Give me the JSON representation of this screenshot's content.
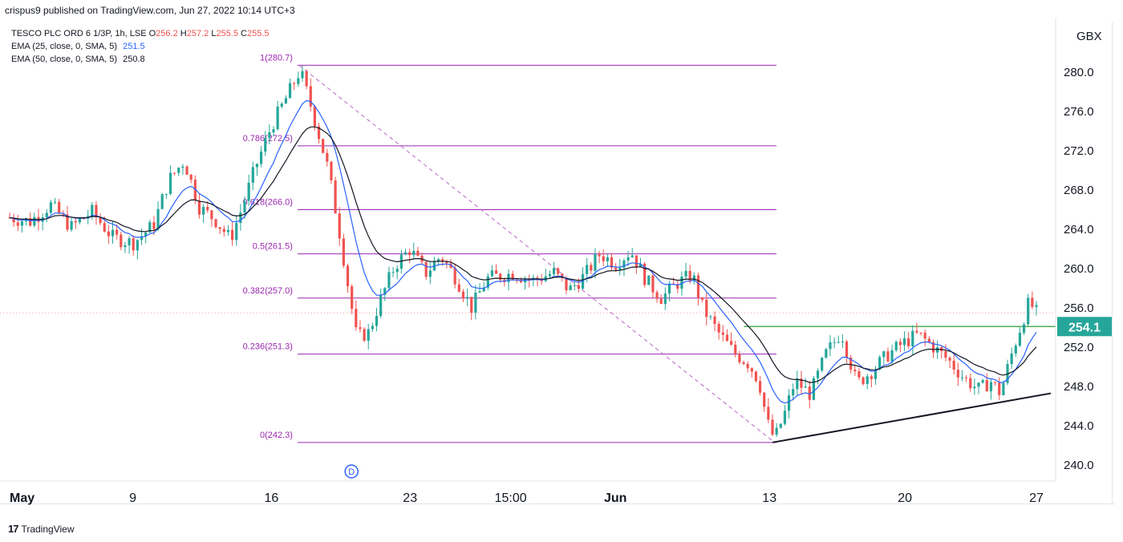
{
  "header": {
    "published": "crispus9 published on TradingView.com, Jun 27, 2022 10:14 UTC+3"
  },
  "legend": {
    "symbol": "TESCO PLC ORD 6 1/3P, 1h, LSE",
    "ohlc": [
      {
        "k": "O",
        "v": "256.2"
      },
      {
        "k": "H",
        "v": "257.2"
      },
      {
        "k": "L",
        "v": "255.5"
      },
      {
        "k": "C",
        "v": "255.5"
      }
    ],
    "ema25": {
      "label": "EMA (25, close, 0, SMA, 5)",
      "value": "251.5",
      "color": "#2962ff"
    },
    "ema50": {
      "label": "EMA (50, close, 0, SMA, 5)",
      "value": "250.8",
      "color": "#131722"
    }
  },
  "footer": {
    "logo": "17",
    "brand": "TradingView"
  },
  "chart_data": {
    "type": "candlestick",
    "currency": "GBX",
    "ylim": [
      238.5,
      283.5
    ],
    "y_ticks": [
      240.0,
      244.0,
      248.0,
      252.0,
      256.0,
      260.0,
      264.0,
      268.0,
      272.0,
      276.0,
      280.0
    ],
    "x_labels": [
      {
        "label": "May",
        "bold": true,
        "t": 0.0
      },
      {
        "label": "9",
        "bold": false,
        "t": 0.12
      },
      {
        "label": "16",
        "bold": false,
        "t": 0.255
      },
      {
        "label": "23",
        "bold": false,
        "t": 0.39
      },
      {
        "label": "15:00",
        "bold": false,
        "t": 0.488
      },
      {
        "label": "Jun",
        "bold": true,
        "t": 0.59
      },
      {
        "label": "13",
        "bold": false,
        "t": 0.74
      },
      {
        "label": "20",
        "bold": false,
        "t": 0.872
      },
      {
        "label": "27",
        "bold": false,
        "t": 1.0
      }
    ],
    "current_price": {
      "value": 254.1,
      "label": "254.1",
      "color": "#26a69a"
    },
    "last_close": 255.5,
    "fibonacci": {
      "color": "#9c27b0",
      "t_start": 0.282,
      "t_end": 0.755,
      "levels": [
        {
          "ratio": "1",
          "price": 280.7,
          "label": "1(280.7)"
        },
        {
          "ratio": "0.786",
          "price": 272.5,
          "label": "0.786(272.5)"
        },
        {
          "ratio": "0.618",
          "price": 266.0,
          "label": "0.618(266.0)"
        },
        {
          "ratio": "0.5",
          "price": 261.5,
          "label": "0.5(261.5)"
        },
        {
          "ratio": "0.382",
          "price": 257.0,
          "label": "0.382(257.0)"
        },
        {
          "ratio": "0.236",
          "price": 251.3,
          "label": "0.236(251.3)"
        },
        {
          "ratio": "0",
          "price": 242.3,
          "label": "0(242.3)"
        }
      ]
    },
    "resistance_line": {
      "color": "#4caf50",
      "price": 254.1,
      "t_start": 0.715,
      "t_end": 1.0
    },
    "support_trendline": {
      "color": "#131722",
      "points": [
        {
          "t": 0.743,
          "price": 242.3
        },
        {
          "t": 1.0,
          "price": 247.3
        }
      ]
    },
    "dividend_marker": {
      "label": "D",
      "t": 0.333
    },
    "price_path": [
      {
        "t": 0.0,
        "p": 265.2
      },
      {
        "t": 0.02,
        "p": 264.8
      },
      {
        "t": 0.04,
        "p": 266.5
      },
      {
        "t": 0.06,
        "p": 264.2
      },
      {
        "t": 0.08,
        "p": 265.8
      },
      {
        "t": 0.1,
        "p": 263.2
      },
      {
        "t": 0.12,
        "p": 262.6
      },
      {
        "t": 0.14,
        "p": 264.4
      },
      {
        "t": 0.155,
        "p": 269.0
      },
      {
        "t": 0.17,
        "p": 271.0
      },
      {
        "t": 0.185,
        "p": 266.2
      },
      {
        "t": 0.2,
        "p": 265.0
      },
      {
        "t": 0.215,
        "p": 263.0
      },
      {
        "t": 0.225,
        "p": 265.8
      },
      {
        "t": 0.24,
        "p": 270.5
      },
      {
        "t": 0.255,
        "p": 274.5
      },
      {
        "t": 0.27,
        "p": 277.5
      },
      {
        "t": 0.283,
        "p": 280.2
      },
      {
        "t": 0.295,
        "p": 276.0
      },
      {
        "t": 0.31,
        "p": 270.2
      },
      {
        "t": 0.32,
        "p": 264.5
      },
      {
        "t": 0.33,
        "p": 258.0
      },
      {
        "t": 0.338,
        "p": 253.0
      },
      {
        "t": 0.35,
        "p": 253.5
      },
      {
        "t": 0.36,
        "p": 256.5
      },
      {
        "t": 0.375,
        "p": 260.3
      },
      {
        "t": 0.39,
        "p": 262.0
      },
      {
        "t": 0.405,
        "p": 259.5
      },
      {
        "t": 0.42,
        "p": 261.3
      },
      {
        "t": 0.435,
        "p": 259.0
      },
      {
        "t": 0.45,
        "p": 256.0
      },
      {
        "t": 0.465,
        "p": 259.0
      },
      {
        "t": 0.49,
        "p": 259.5
      },
      {
        "t": 0.51,
        "p": 258.8
      },
      {
        "t": 0.53,
        "p": 259.6
      },
      {
        "t": 0.545,
        "p": 257.8
      },
      {
        "t": 0.56,
        "p": 259.3
      },
      {
        "t": 0.575,
        "p": 261.5
      },
      {
        "t": 0.59,
        "p": 260.5
      },
      {
        "t": 0.605,
        "p": 261.8
      },
      {
        "t": 0.62,
        "p": 258.8
      },
      {
        "t": 0.635,
        "p": 257.0
      },
      {
        "t": 0.65,
        "p": 258.5
      },
      {
        "t": 0.665,
        "p": 259.4
      },
      {
        "t": 0.675,
        "p": 256.0
      },
      {
        "t": 0.69,
        "p": 253.5
      },
      {
        "t": 0.705,
        "p": 251.5
      },
      {
        "t": 0.72,
        "p": 250.3
      },
      {
        "t": 0.73,
        "p": 248.5
      },
      {
        "t": 0.738,
        "p": 244.3
      },
      {
        "t": 0.745,
        "p": 242.6
      },
      {
        "t": 0.755,
        "p": 245.3
      },
      {
        "t": 0.765,
        "p": 248.6
      },
      {
        "t": 0.78,
        "p": 247.2
      },
      {
        "t": 0.795,
        "p": 251.3
      },
      {
        "t": 0.81,
        "p": 253.6
      },
      {
        "t": 0.825,
        "p": 248.3
      },
      {
        "t": 0.84,
        "p": 249.6
      },
      {
        "t": 0.855,
        "p": 251.2
      },
      {
        "t": 0.87,
        "p": 252.4
      },
      {
        "t": 0.885,
        "p": 253.3
      },
      {
        "t": 0.9,
        "p": 252.0
      },
      {
        "t": 0.915,
        "p": 250.6
      },
      {
        "t": 0.93,
        "p": 248.8
      },
      {
        "t": 0.945,
        "p": 247.6
      },
      {
        "t": 0.955,
        "p": 248.6
      },
      {
        "t": 0.965,
        "p": 247.3
      },
      {
        "t": 0.975,
        "p": 251.0
      },
      {
        "t": 0.985,
        "p": 254.2
      },
      {
        "t": 0.993,
        "p": 256.6
      },
      {
        "t": 1.0,
        "p": 255.5
      }
    ]
  }
}
